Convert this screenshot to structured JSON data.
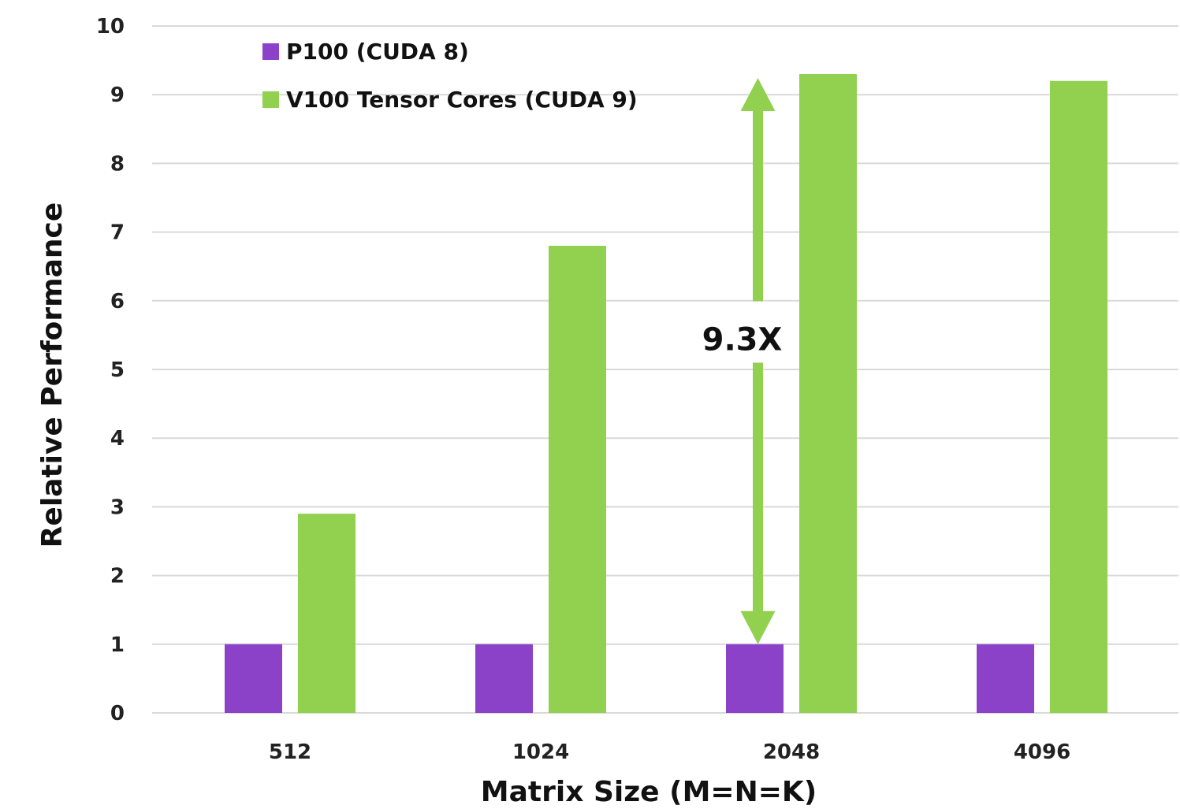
{
  "chart_data": {
    "type": "bar",
    "title": "",
    "xlabel": "Matrix Size (M=N=K)",
    "ylabel": "Relative Performance",
    "categories": [
      "512",
      "1024",
      "2048",
      "4096"
    ],
    "series": [
      {
        "name": "P100 (CUDA 8)",
        "color": "#8b41c8",
        "values": [
          1,
          1,
          1,
          1
        ]
      },
      {
        "name": "V100 Tensor Cores (CUDA 9)",
        "color": "#92d050",
        "values": [
          2.9,
          6.8,
          9.3,
          9.2
        ]
      }
    ],
    "ylim": [
      0,
      10
    ],
    "yticks": [
      "0",
      "1",
      "2",
      "3",
      "4",
      "5",
      "6",
      "7",
      "8",
      "9",
      "10"
    ],
    "grid": true,
    "legend_position": "top-left",
    "annotation": {
      "label": "9.3X",
      "category": "2048",
      "from_value": 1,
      "to_value": 9.3,
      "color": "#92d050"
    }
  }
}
